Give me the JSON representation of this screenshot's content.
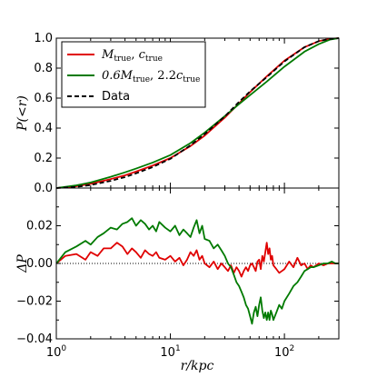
{
  "chart_data": [
    {
      "type": "line",
      "panel": "top",
      "xscale": "log",
      "xlim": [
        1,
        300
      ],
      "ylim": [
        0.0,
        1.0
      ],
      "ylabel": "P(<r)",
      "yticks": [
        "0.0",
        "0.2",
        "0.4",
        "0.6",
        "0.8",
        "1.0"
      ],
      "grid": false,
      "legend": {
        "placement": "top-left",
        "entries": [
          {
            "label": "M_true, c_true",
            "text_main_a": "M",
            "text_sub_a": "true",
            "text_sep": ", ",
            "text_main_b": "c",
            "text_sub_b": "true",
            "color": "#e00000",
            "style": "solid"
          },
          {
            "label": "0.6M_true, 2.2c_true",
            "text_main_a": "0.6M",
            "text_sub_a": "true",
            "text_sep": ", 2.2",
            "text_main_b": "c",
            "text_sub_b": "true",
            "color": "#007a00",
            "style": "solid"
          },
          {
            "label": "Data",
            "text": "Data",
            "color": "#000000",
            "style": "dashed"
          }
        ]
      },
      "series": [
        {
          "name": "M_true, c_true",
          "color": "#e00000",
          "x": [
            1,
            1.5,
            2,
            3,
            4,
            5,
            7,
            10,
            15,
            20,
            30,
            40,
            50,
            70,
            100,
            150,
            200,
            250,
            300
          ],
          "y": [
            0.0,
            0.012,
            0.028,
            0.06,
            0.085,
            0.11,
            0.15,
            0.2,
            0.28,
            0.35,
            0.47,
            0.565,
            0.64,
            0.745,
            0.85,
            0.94,
            0.98,
            0.995,
            1.0
          ]
        },
        {
          "name": "0.6M_true, 2.2c_true",
          "color": "#007a00",
          "x": [
            1,
            1.5,
            2,
            3,
            4,
            5,
            7,
            10,
            15,
            20,
            30,
            40,
            50,
            70,
            100,
            150,
            200,
            250,
            300
          ],
          "y": [
            0.0,
            0.018,
            0.037,
            0.075,
            0.105,
            0.13,
            0.17,
            0.22,
            0.3,
            0.37,
            0.48,
            0.56,
            0.62,
            0.71,
            0.81,
            0.91,
            0.96,
            0.99,
            1.0
          ]
        },
        {
          "name": "Data",
          "color": "#000000",
          "x": [
            1,
            1.5,
            2,
            3,
            4,
            5,
            7,
            10,
            15,
            20,
            30,
            40,
            50,
            70,
            100,
            150,
            200,
            250,
            300
          ],
          "y": [
            0.0,
            0.008,
            0.02,
            0.048,
            0.073,
            0.098,
            0.14,
            0.195,
            0.285,
            0.36,
            0.478,
            0.575,
            0.645,
            0.74,
            0.845,
            0.94,
            0.98,
            0.995,
            1.0
          ]
        }
      ]
    },
    {
      "type": "line",
      "panel": "bottom",
      "xscale": "log",
      "xlim": [
        1,
        300
      ],
      "ylim": [
        -0.04,
        0.04
      ],
      "xlabel": "r/kpc",
      "ylabel": "ΔP",
      "xticks": [
        {
          "value": 1,
          "base": "10",
          "exp": "0"
        },
        {
          "value": 10,
          "base": "10",
          "exp": "1"
        },
        {
          "value": 100,
          "base": "10",
          "exp": "2"
        }
      ],
      "yticks": [
        "−0.04",
        "−0.02",
        "0.00",
        "0.02"
      ],
      "zero_line": {
        "value": 0.0,
        "style": "dotted"
      },
      "grid": false,
      "series": [
        {
          "name": "M_true, c_true",
          "color": "#e00000",
          "x": [
            1,
            1.2,
            1.5,
            1.8,
            2.0,
            2.3,
            2.6,
            3.0,
            3.4,
            3.8,
            4.2,
            4.6,
            5.0,
            5.5,
            6.0,
            6.5,
            7.0,
            7.5,
            8.0,
            9.0,
            10,
            11,
            12,
            13,
            14,
            15,
            16,
            17,
            18,
            19,
            20,
            22,
            24,
            26,
            28,
            30,
            32,
            34,
            36,
            38,
            40,
            42,
            44,
            46,
            48,
            50,
            52,
            54,
            56,
            58,
            60,
            62,
            64,
            66,
            68,
            70,
            72,
            74,
            76,
            78,
            80,
            85,
            90,
            95,
            100,
            110,
            120,
            130,
            140,
            150,
            160,
            170,
            180,
            200,
            220,
            240,
            260,
            280,
            300
          ],
          "y": [
            0.0,
            0.004,
            0.005,
            0.002,
            0.006,
            0.004,
            0.008,
            0.008,
            0.011,
            0.009,
            0.005,
            0.008,
            0.006,
            0.003,
            0.007,
            0.005,
            0.004,
            0.006,
            0.003,
            0.002,
            0.004,
            0.001,
            0.003,
            -0.001,
            0.002,
            0.006,
            0.004,
            0.007,
            0.002,
            0.004,
            0.0,
            -0.002,
            0.001,
            -0.003,
            0.0,
            -0.002,
            -0.004,
            -0.001,
            -0.005,
            -0.002,
            -0.004,
            -0.007,
            -0.004,
            -0.002,
            -0.004,
            -0.001,
            0.0,
            -0.002,
            -0.004,
            0.001,
            0.002,
            -0.003,
            0.004,
            0.001,
            0.006,
            0.011,
            0.005,
            0.008,
            0.002,
            0.004,
            -0.001,
            -0.003,
            -0.005,
            -0.004,
            -0.003,
            0.001,
            -0.002,
            0.003,
            -0.001,
            0.0,
            -0.003,
            -0.001,
            -0.002,
            0.0,
            -0.001,
            0.0,
            0.0,
            0.0,
            0.0
          ]
        },
        {
          "name": "0.6M_true, 2.2c_true",
          "color": "#007a00",
          "x": [
            1,
            1.2,
            1.5,
            1.8,
            2.0,
            2.3,
            2.6,
            3.0,
            3.4,
            3.8,
            4.2,
            4.6,
            5.0,
            5.5,
            6.0,
            6.5,
            7.0,
            7.5,
            8.0,
            9.0,
            10,
            11,
            12,
            13,
            14,
            15,
            16,
            17,
            18,
            19,
            20,
            22,
            24,
            26,
            28,
            30,
            32,
            34,
            36,
            38,
            40,
            42,
            44,
            46,
            48,
            50,
            52,
            54,
            56,
            58,
            60,
            62,
            64,
            66,
            68,
            70,
            72,
            74,
            76,
            78,
            80,
            85,
            90,
            95,
            100,
            110,
            120,
            130,
            140,
            150,
            160,
            170,
            180,
            200,
            220,
            240,
            260,
            280,
            300
          ],
          "y": [
            0.0,
            0.006,
            0.009,
            0.012,
            0.01,
            0.014,
            0.016,
            0.019,
            0.018,
            0.021,
            0.022,
            0.024,
            0.02,
            0.023,
            0.021,
            0.018,
            0.02,
            0.017,
            0.022,
            0.019,
            0.017,
            0.02,
            0.015,
            0.018,
            0.016,
            0.014,
            0.019,
            0.023,
            0.016,
            0.02,
            0.013,
            0.012,
            0.008,
            0.01,
            0.007,
            0.004,
            0.0,
            -0.002,
            -0.006,
            -0.01,
            -0.012,
            -0.015,
            -0.018,
            -0.022,
            -0.024,
            -0.028,
            -0.032,
            -0.026,
            -0.023,
            -0.028,
            -0.022,
            -0.018,
            -0.025,
            -0.029,
            -0.026,
            -0.03,
            -0.026,
            -0.03,
            -0.025,
            -0.027,
            -0.03,
            -0.026,
            -0.022,
            -0.024,
            -0.02,
            -0.016,
            -0.012,
            -0.01,
            -0.007,
            -0.004,
            -0.003,
            -0.002,
            -0.002,
            -0.001,
            0.0,
            0.0,
            0.001,
            0.0,
            0.0
          ]
        }
      ]
    }
  ]
}
